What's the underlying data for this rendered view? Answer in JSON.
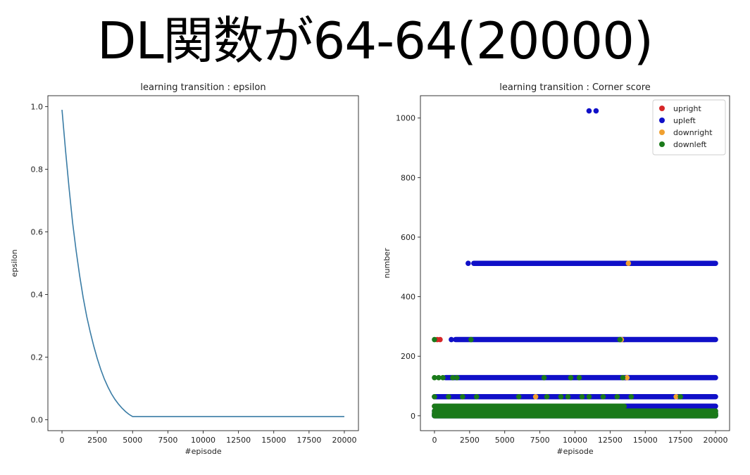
{
  "slide": {
    "title": "DL関数が64-64(20000)"
  },
  "chart_data": [
    {
      "type": "line",
      "title": "learning transition : epsilon",
      "xlabel": "#episode",
      "ylabel": "epsilon",
      "xlim": [
        -1000,
        21000
      ],
      "ylim": [
        -0.035,
        1.035
      ],
      "xticks": [
        0,
        2500,
        5000,
        7500,
        10000,
        12500,
        15000,
        17500,
        20000
      ],
      "yticks": [
        0.0,
        0.2,
        0.4,
        0.6,
        0.8,
        1.0
      ],
      "yticklabels": [
        "0.0",
        "0.2",
        "0.4",
        "0.6",
        "0.8",
        "1.0"
      ],
      "grid": false,
      "series": [
        {
          "color": "#3a7ca5",
          "x": [
            0,
            250,
            500,
            750,
            1000,
            1250,
            1500,
            1750,
            2000,
            2250,
            2500,
            2750,
            3000,
            3250,
            3500,
            3750,
            4000,
            4250,
            4500,
            4750,
            5000,
            7500,
            10000,
            12500,
            15000,
            17500,
            20000
          ],
          "y": [
            0.99,
            0.86,
            0.74,
            0.63,
            0.54,
            0.46,
            0.39,
            0.33,
            0.28,
            0.235,
            0.195,
            0.16,
            0.13,
            0.105,
            0.083,
            0.065,
            0.05,
            0.037,
            0.026,
            0.017,
            0.01,
            0.01,
            0.01,
            0.01,
            0.01,
            0.01,
            0.01
          ]
        }
      ]
    },
    {
      "type": "scatter",
      "title": "learning transition : Corner score",
      "xlabel": "#episode",
      "ylabel": "number",
      "xlim": [
        -1000,
        21000
      ],
      "ylim": [
        -50,
        1075
      ],
      "xticks": [
        0,
        2500,
        5000,
        7500,
        10000,
        12500,
        15000,
        17500,
        20000
      ],
      "yticks": [
        0,
        200,
        400,
        600,
        800,
        1000
      ],
      "yticklabels": [
        "0",
        "200",
        "400",
        "600",
        "800",
        "1000"
      ],
      "grid": false,
      "legend_position": "top-right",
      "series": [
        {
          "name": "upright",
          "color": "#d62728",
          "bands": [],
          "points": [
            [
              200,
              256
            ],
            [
              400,
              256
            ],
            [
              13200,
              512
            ],
            [
              13500,
              256
            ],
            [
              13600,
              128
            ]
          ]
        },
        {
          "name": "upleft",
          "color": "#1010c8",
          "bands": [
            [
              0,
              20000,
              0,
              1
            ],
            [
              0,
              20000,
              2,
              1
            ],
            [
              0,
              20000,
              4,
              1
            ],
            [
              0,
              20000,
              8,
              1
            ],
            [
              0,
              20000,
              16,
              1
            ],
            [
              0,
              20000,
              32,
              1
            ],
            [
              0,
              20000,
              64,
              1
            ],
            [
              800,
              20000,
              128,
              1
            ],
            [
              1500,
              20000,
              256,
              1
            ],
            [
              2800,
              20000,
              512,
              1
            ]
          ],
          "points": [
            [
              2400,
              512
            ],
            [
              1200,
              256
            ],
            [
              11000,
              1024
            ],
            [
              11500,
              1024
            ]
          ]
        },
        {
          "name": "downright",
          "color": "#f0a030",
          "bands": [],
          "points": [
            [
              0,
              32
            ],
            [
              7200,
              64
            ],
            [
              13300,
              256
            ],
            [
              13800,
              512
            ],
            [
              13700,
              128
            ],
            [
              17200,
              64
            ]
          ]
        },
        {
          "name": "downleft",
          "color": "#1a7a1a",
          "bands": [
            [
              0,
              20000,
              0,
              1
            ],
            [
              0,
              20000,
              2,
              1
            ],
            [
              0,
              20000,
              4,
              1
            ],
            [
              0,
              20000,
              8,
              1
            ],
            [
              0,
              20000,
              16,
              1
            ],
            [
              0,
              13500,
              32,
              1
            ]
          ],
          "points": [
            [
              0,
              256
            ],
            [
              0,
              128
            ],
            [
              300,
              128
            ],
            [
              600,
              128
            ],
            [
              1300,
              128
            ],
            [
              1600,
              128
            ],
            [
              0,
              64
            ],
            [
              1000,
              64
            ],
            [
              2000,
              64
            ],
            [
              3000,
              64
            ],
            [
              6000,
              64
            ],
            [
              8000,
              64
            ],
            [
              9000,
              64
            ],
            [
              9500,
              64
            ],
            [
              10500,
              64
            ],
            [
              11000,
              64
            ],
            [
              12000,
              64
            ],
            [
              13000,
              64
            ],
            [
              14000,
              64
            ],
            [
              17500,
              64
            ],
            [
              7800,
              128
            ],
            [
              9700,
              128
            ],
            [
              10300,
              128
            ],
            [
              13200,
              256
            ],
            [
              13400,
              128
            ],
            [
              2600,
              256
            ]
          ]
        }
      ]
    }
  ]
}
